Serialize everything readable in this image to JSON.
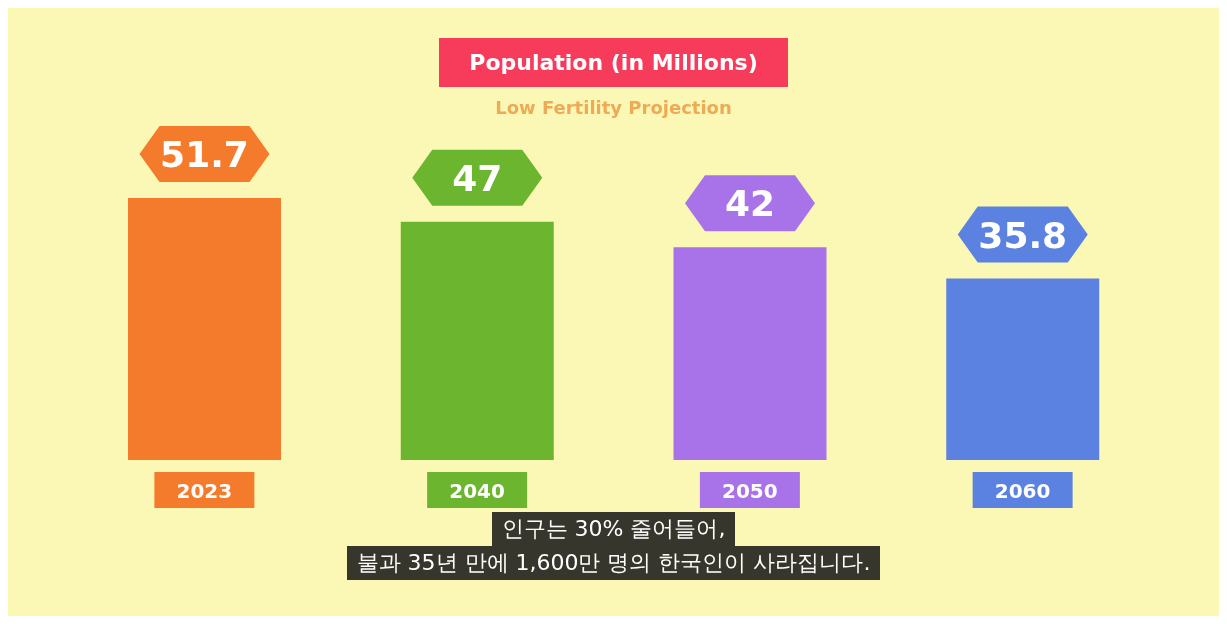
{
  "chart_data": {
    "type": "bar",
    "title": "Population (in Millions)",
    "subtitle": "Low Fertility Projection",
    "categories": [
      "2023",
      "2040",
      "2050",
      "2060"
    ],
    "values": [
      51.7,
      47,
      42,
      35.8
    ],
    "colors": [
      "#f47a2c",
      "#6cb52e",
      "#a873e8",
      "#5b82e0"
    ],
    "data_labels": true,
    "annotations": [
      "인구는 30% 줄어들어,",
      "불과 35년 만에 1,600만 명의 한국인이 사라집니다."
    ]
  }
}
